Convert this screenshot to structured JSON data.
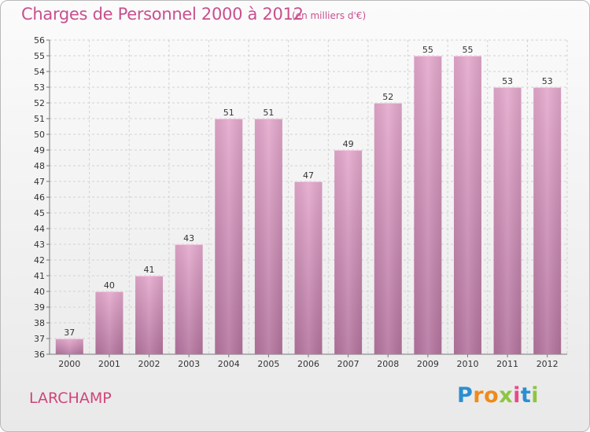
{
  "title": "Charges de Personnel 2000 à 2012",
  "subtitle": "(en milliers d'€)",
  "place": "LARCHAMP",
  "logo": {
    "p": "P",
    "r": "r",
    "o": "o",
    "x": "x",
    "i": "i",
    "t": "t",
    "i2": "i"
  },
  "colors": {
    "bar": "#d98fb9",
    "bar_dark": "#b86b99",
    "title": "#c8508e",
    "place": "#d0447a"
  },
  "chart_data": {
    "type": "bar",
    "categories": [
      "2000",
      "2001",
      "2002",
      "2003",
      "2004",
      "2005",
      "2006",
      "2007",
      "2008",
      "2009",
      "2010",
      "2011",
      "2012"
    ],
    "values": [
      37,
      40,
      41,
      43,
      51,
      51,
      47,
      49,
      52,
      55,
      55,
      53,
      53
    ],
    "title": "Charges de Personnel 2000 à 2012",
    "ylim": [
      36,
      56
    ],
    "yticks": [
      36,
      37,
      38,
      39,
      40,
      41,
      42,
      43,
      44,
      45,
      46,
      47,
      48,
      49,
      50,
      51,
      52,
      53,
      54,
      55,
      56
    ],
    "grid": true
  }
}
